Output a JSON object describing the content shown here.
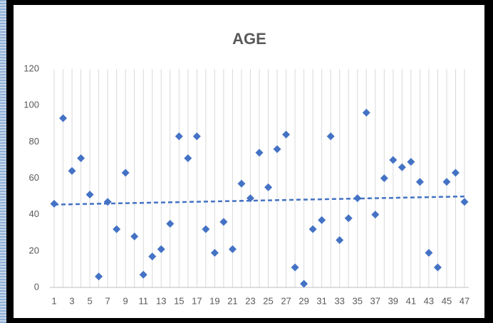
{
  "chart_data": {
    "type": "line",
    "title": "AGE",
    "categories": [
      1,
      null,
      3,
      null,
      5,
      null,
      7,
      null,
      9,
      null,
      11,
      null,
      13,
      null,
      15,
      null,
      17,
      null,
      19,
      null,
      21,
      null,
      23,
      null,
      25,
      null,
      27,
      null,
      29,
      null,
      31,
      null,
      33,
      null,
      35,
      null,
      37,
      null,
      39,
      null,
      41,
      null,
      43,
      null,
      45,
      null,
      47
    ],
    "values": [
      46,
      93,
      64,
      71,
      51,
      6,
      47,
      32,
      63,
      28,
      7,
      17,
      21,
      35,
      83,
      71,
      83,
      32,
      19,
      36,
      21,
      57,
      49,
      74,
      55,
      76,
      84,
      11,
      2,
      32,
      37,
      83,
      26,
      38,
      49,
      96,
      40,
      60,
      70,
      66,
      69,
      58,
      19,
      11,
      58,
      63,
      47
    ],
    "trendline": [
      45.5,
      50
    ],
    "color": "#4472c4",
    "ylim": [
      0,
      120
    ],
    "yticks": [
      0,
      20,
      40,
      60,
      80,
      100,
      120
    ],
    "grid": true
  }
}
